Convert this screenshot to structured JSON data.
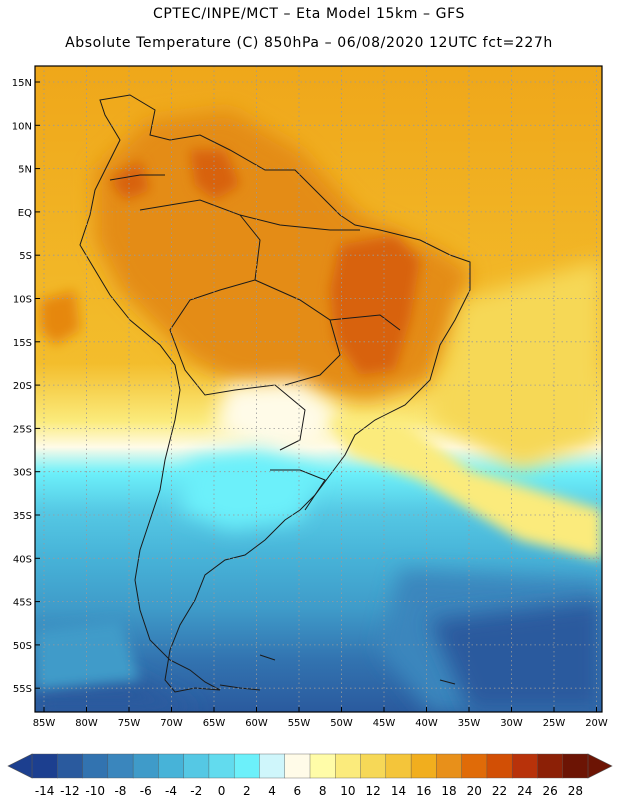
{
  "title": {
    "line1": "CPTEC/INPE/MCT –  Eta Model 15km – GFS",
    "line2": "Absolute Temperature (C) 850hPa – 06/08/2020 12UTC fct=227h"
  },
  "axes": {
    "lat_labels": [
      "15N",
      "10N",
      "5N",
      "EQ",
      "5S",
      "10S",
      "15S",
      "20S",
      "25S",
      "30S",
      "35S",
      "40S",
      "45S",
      "50S",
      "55S"
    ],
    "lon_labels": [
      "85W",
      "80W",
      "75W",
      "70W",
      "65W",
      "60W",
      "55W",
      "50W",
      "45W",
      "40W",
      "35W",
      "30W",
      "25W",
      "20W"
    ]
  },
  "colorbar": {
    "labels": [
      "-14",
      "-12",
      "-10",
      "-8",
      "-6",
      "-4",
      "-2",
      "0",
      "2",
      "4",
      "6",
      "8",
      "10",
      "12",
      "14",
      "16",
      "18",
      "20",
      "22",
      "24",
      "26",
      "28"
    ],
    "colors": [
      "#1c3f8f",
      "#2a5a9e",
      "#3273b0",
      "#3a86bd",
      "#3f9bc9",
      "#47b3d8",
      "#55c8e4",
      "#62dbee",
      "#6cf0fa",
      "#cff6fb",
      "#fffbe8",
      "#fffca8",
      "#fbeb7c",
      "#f6d857",
      "#f4c53a",
      "#f1ae1e",
      "#e8901a",
      "#e06b08",
      "#d24f05",
      "#b8320a",
      "#8c2006",
      "#6c1404"
    ]
  },
  "colors": {
    "frame": "#000000",
    "grid": "#9a9a9a",
    "land_outline": "#1a1a1a"
  }
}
